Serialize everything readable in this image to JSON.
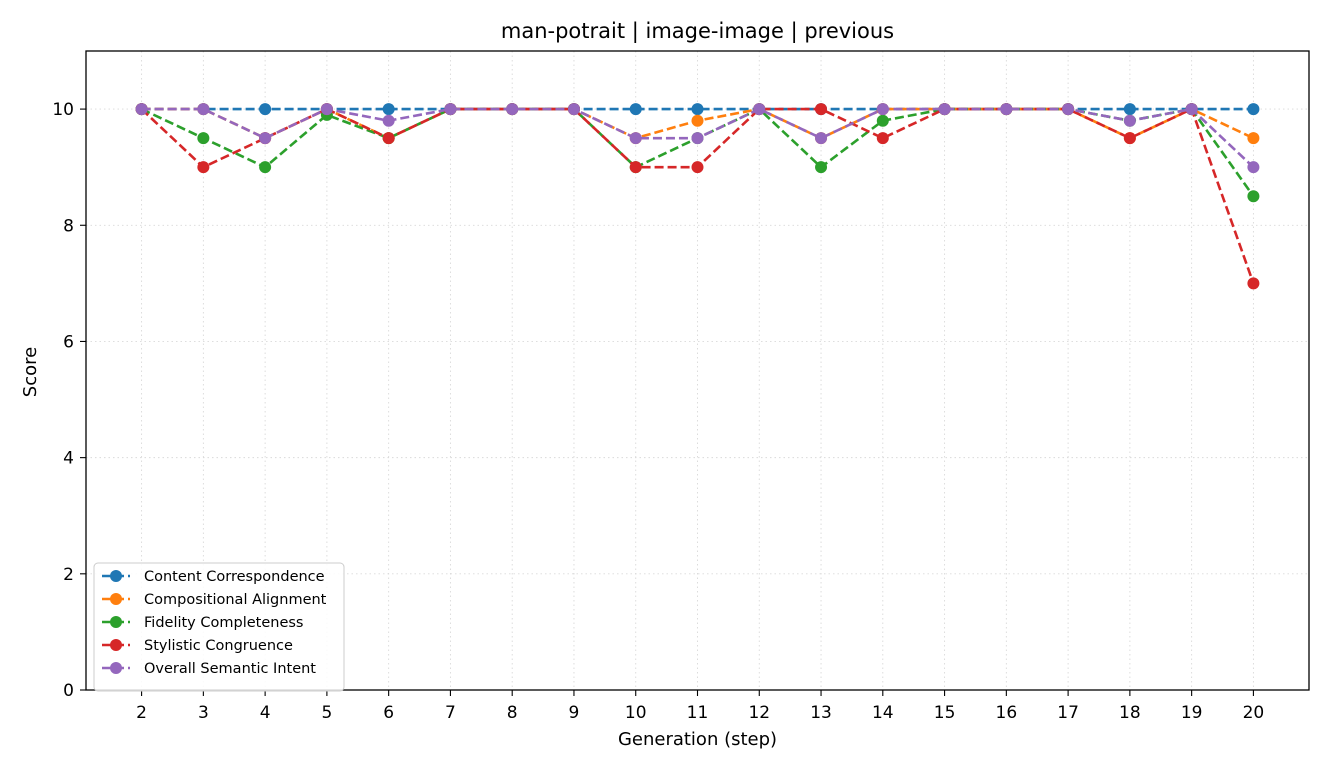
{
  "chart_data": {
    "type": "line",
    "title": "man-potrait | image-image | previous",
    "xlabel": "Generation (step)",
    "ylabel": "Score",
    "x": [
      2,
      3,
      4,
      5,
      6,
      7,
      8,
      9,
      10,
      11,
      12,
      13,
      14,
      15,
      16,
      17,
      18,
      19,
      20
    ],
    "xlim": [
      1.1,
      20.9
    ],
    "ylim": [
      0,
      11
    ],
    "yticks": [
      0,
      2,
      4,
      6,
      8,
      10
    ],
    "grid": true,
    "grid_style": "dotted",
    "line_style": "dashed",
    "marker": "circle",
    "legend_position": "lower-left",
    "series": [
      {
        "name": "Content Correspondence",
        "color": "#1f77b4",
        "values": [
          10,
          10,
          10,
          10,
          10,
          10,
          10,
          10,
          10,
          10,
          10,
          10,
          10,
          10,
          10,
          10,
          10,
          10,
          10
        ]
      },
      {
        "name": "Compositional Alignment",
        "color": "#ff7f0e",
        "values": [
          10,
          10,
          9.5,
          10,
          9.5,
          10,
          10,
          10,
          9.5,
          9.8,
          10,
          9.5,
          10,
          10,
          10,
          10,
          9.5,
          10,
          9.5
        ]
      },
      {
        "name": "Fidelity Completeness",
        "color": "#2ca02c",
        "values": [
          10,
          9.5,
          9,
          9.9,
          9.5,
          10,
          10,
          10,
          9,
          9.5,
          10,
          9,
          9.8,
          10,
          10,
          10,
          9.8,
          10,
          8.5
        ]
      },
      {
        "name": "Stylistic Congruence",
        "color": "#d62728",
        "values": [
          10,
          9,
          9.5,
          10,
          9.5,
          10,
          10,
          10,
          9,
          9,
          10,
          10,
          9.5,
          10,
          10,
          10,
          9.5,
          10,
          7
        ]
      },
      {
        "name": "Overall Semantic Intent",
        "color": "#9467bd",
        "values": [
          10,
          10,
          9.5,
          10,
          9.8,
          10,
          10,
          10,
          9.5,
          9.5,
          10,
          9.5,
          10,
          10,
          10,
          10,
          9.8,
          10,
          9
        ]
      }
    ]
  }
}
